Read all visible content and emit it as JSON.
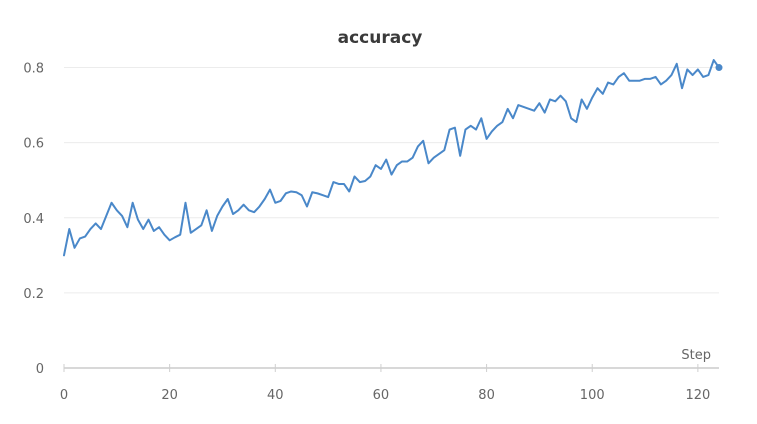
{
  "chart_data": {
    "type": "line",
    "title": "accuracy",
    "xlabel": "Step",
    "ylabel": "",
    "xlim": [
      0,
      124
    ],
    "ylim": [
      0,
      0.9
    ],
    "x_ticks": [
      0,
      20,
      40,
      60,
      80,
      100,
      120
    ],
    "y_ticks": [
      0,
      0.2,
      0.4,
      0.6,
      0.8
    ],
    "y_tick_labels": [
      "0",
      "0.2",
      "0.4",
      "0.6",
      "0.8"
    ],
    "grid": true,
    "legend": "none",
    "line_color": "#4a88c9",
    "series": [
      {
        "x": [
          0,
          1,
          2,
          3,
          4,
          5,
          6,
          7,
          8,
          9,
          10,
          11,
          12,
          13,
          14,
          15,
          16,
          17,
          18,
          19,
          20,
          21,
          22,
          23,
          24,
          25,
          26,
          27,
          28,
          29,
          30,
          31,
          32,
          33,
          34,
          35,
          36,
          37,
          38,
          39,
          40,
          41,
          42,
          43,
          44,
          45,
          46,
          47,
          48,
          49,
          50,
          51,
          52,
          53,
          54,
          55,
          56,
          57,
          58,
          59,
          60,
          61,
          62,
          63,
          64,
          65,
          66,
          67,
          68,
          69,
          70,
          71,
          72,
          73,
          74,
          75,
          76,
          77,
          78,
          79,
          80,
          81,
          82,
          83,
          84,
          85,
          86,
          87,
          88,
          89,
          90,
          91,
          92,
          93,
          94,
          95,
          96,
          97,
          98,
          99,
          100,
          101,
          102,
          103,
          104,
          105,
          106,
          107,
          108,
          109,
          110,
          111,
          112,
          113,
          114,
          115,
          116,
          117,
          118,
          119,
          120,
          121,
          122,
          123,
          124
        ],
        "y": [
          0.3,
          0.37,
          0.32,
          0.345,
          0.35,
          0.37,
          0.385,
          0.37,
          0.405,
          0.44,
          0.42,
          0.405,
          0.375,
          0.44,
          0.395,
          0.37,
          0.395,
          0.365,
          0.375,
          0.355,
          0.34,
          0.348,
          0.355,
          0.44,
          0.36,
          0.37,
          0.38,
          0.42,
          0.365,
          0.405,
          0.43,
          0.45,
          0.41,
          0.42,
          0.435,
          0.42,
          0.415,
          0.43,
          0.45,
          0.475,
          0.44,
          0.445,
          0.465,
          0.47,
          0.468,
          0.46,
          0.43,
          0.468,
          0.465,
          0.46,
          0.455,
          0.495,
          0.49,
          0.49,
          0.47,
          0.51,
          0.495,
          0.498,
          0.51,
          0.54,
          0.53,
          0.555,
          0.515,
          0.54,
          0.55,
          0.55,
          0.56,
          0.59,
          0.605,
          0.545,
          0.56,
          0.57,
          0.58,
          0.635,
          0.64,
          0.565,
          0.635,
          0.645,
          0.635,
          0.665,
          0.61,
          0.63,
          0.645,
          0.655,
          0.69,
          0.665,
          0.7,
          0.695,
          0.69,
          0.685,
          0.705,
          0.68,
          0.715,
          0.71,
          0.725,
          0.71,
          0.665,
          0.655,
          0.715,
          0.69,
          0.72,
          0.745,
          0.73,
          0.76,
          0.755,
          0.775,
          0.785,
          0.765,
          0.765,
          0.765,
          0.77,
          0.77,
          0.775,
          0.755,
          0.765,
          0.78,
          0.81,
          0.745,
          0.795,
          0.78,
          0.795,
          0.775,
          0.78,
          0.82,
          0.8
        ]
      }
    ]
  }
}
